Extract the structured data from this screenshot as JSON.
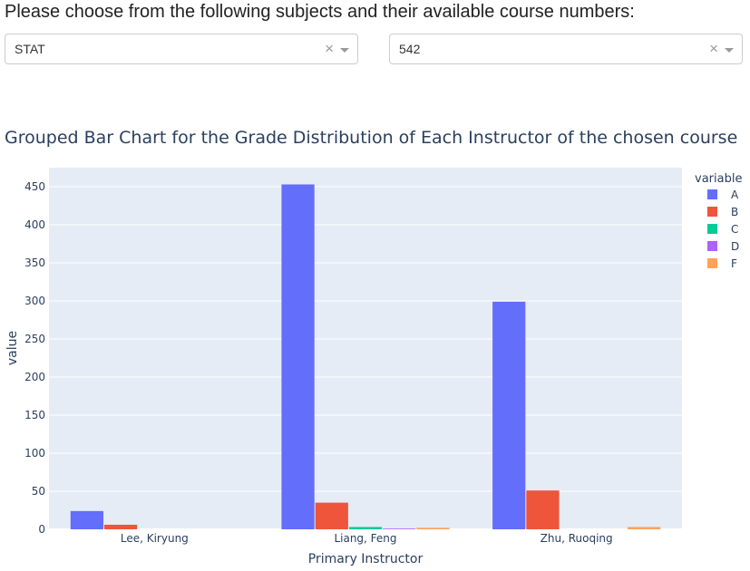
{
  "prompt": "Please choose from the following subjects and their available course numbers:",
  "subject_dropdown": {
    "value": "STAT",
    "clear_icon": "×"
  },
  "course_dropdown": {
    "value": "542",
    "clear_icon": "×"
  },
  "chart_data": {
    "type": "bar",
    "barmode": "group",
    "title": "Grouped Bar Chart for the Grade Distribution of Each Instructor of the chosen course",
    "xlabel": "Primary Instructor",
    "ylabel": "value",
    "categories": [
      "Lee, Kiryung",
      "Liang, Feng",
      "Zhu, Ruoqing"
    ],
    "ylim": [
      0,
      475
    ],
    "yticks": [
      0,
      50,
      100,
      150,
      200,
      250,
      300,
      350,
      400,
      450
    ],
    "grid": true,
    "legend": {
      "title": "variable",
      "position": "top-right"
    },
    "series": [
      {
        "name": "A",
        "color": "#636efa",
        "values": [
          24,
          453,
          299
        ]
      },
      {
        "name": "B",
        "color": "#ef553b",
        "values": [
          6,
          35,
          51
        ]
      },
      {
        "name": "C",
        "color": "#00cc96",
        "values": [
          0,
          3,
          0
        ]
      },
      {
        "name": "D",
        "color": "#ab63fa",
        "values": [
          0,
          1,
          0
        ]
      },
      {
        "name": "F",
        "color": "#ffa15a",
        "values": [
          0,
          2,
          3
        ]
      }
    ]
  }
}
